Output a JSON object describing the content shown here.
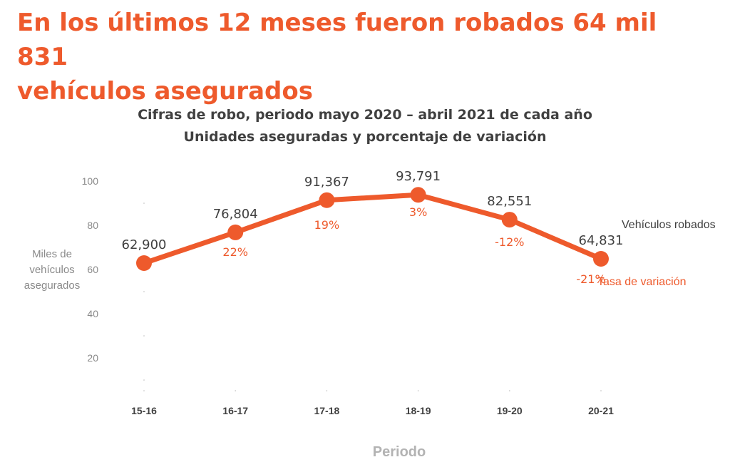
{
  "headline": {
    "line1": "En los últimos 12 meses fueron robados 64 mil 831",
    "line2": "vehículos asegurados"
  },
  "colors": {
    "accent": "#ee5a2c",
    "text_dark": "#404040",
    "text_muted": "#8a8a8a"
  },
  "chart_data": {
    "type": "line",
    "title": "Cifras de robo, periodo mayo 2020 – abril 2021 de cada año",
    "subtitle": "Unidades aseguradas y porcentaje de variación",
    "xlabel": "Periodo",
    "ylabel_lines": [
      "Miles de",
      "vehículos",
      "asegurados"
    ],
    "categories": [
      "15-16",
      "16-17",
      "17-18",
      "18-19",
      "19-20",
      "20-21"
    ],
    "yticks": [
      "100",
      "80",
      "60",
      "40",
      "20"
    ],
    "ylim": [
      0,
      100
    ],
    "series": [
      {
        "name": "Vehículos robados",
        "values": [
          62.9,
          76.804,
          91.367,
          93.791,
          82.551,
          64.831
        ],
        "data_labels": [
          "62,900",
          "76,804",
          "91,367",
          "93,791",
          "82,551",
          "64,831"
        ]
      }
    ],
    "rate_label": "Tasa de variación",
    "rates": [
      "22%",
      "19%",
      "3%",
      "-12%",
      "-21%"
    ],
    "grid": false
  }
}
